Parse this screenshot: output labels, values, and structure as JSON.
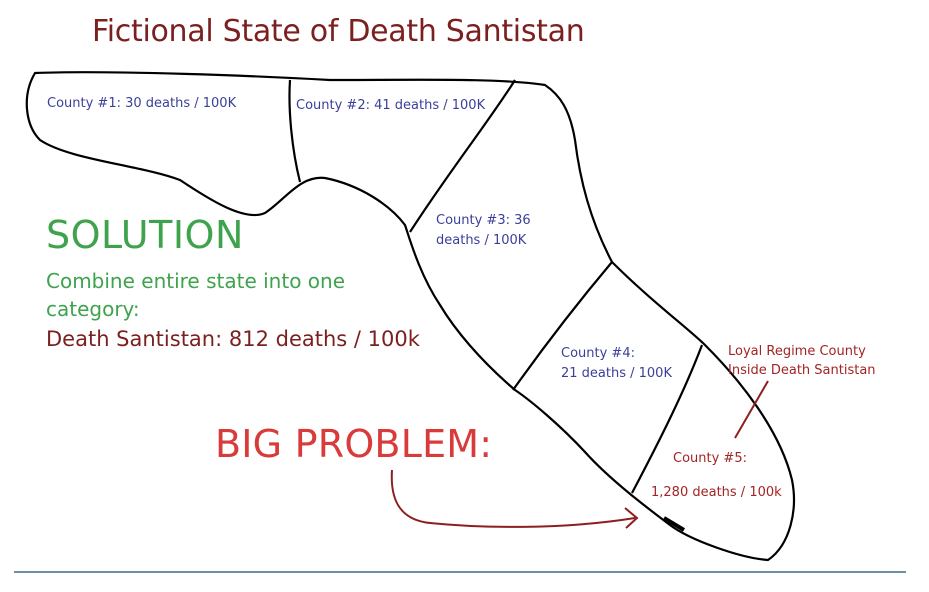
{
  "title": "Fictional State of Death Santistan",
  "solution": {
    "heading": "SOLUTION",
    "line1": "Combine entire state into one",
    "line2": "category:",
    "result": "Death Santistan: 812 deaths / 100k"
  },
  "big_problem": "BIG PROBLEM:",
  "counties": [
    {
      "line1": "County #1: 30 deaths / 100K",
      "line2": ""
    },
    {
      "line1": "County #2: 41 deaths / 100K",
      "line2": ""
    },
    {
      "line1": "County #3: 36",
      "line2": "deaths / 100K"
    },
    {
      "line1": "County #4:",
      "line2": "21 deaths / 100K"
    },
    {
      "line1": "County #5:",
      "line2": "1,280 deaths / 100k"
    }
  ],
  "annotation": {
    "line1": "Loyal Regime County",
    "line2": "Inside Death Santistan"
  },
  "colors": {
    "title": "#7b1f1f",
    "solution": "#3fa34d",
    "big_problem": "#d93a3a",
    "county_labels": "#3b3f99",
    "highlight": "#a32424",
    "outline": "#000000"
  }
}
